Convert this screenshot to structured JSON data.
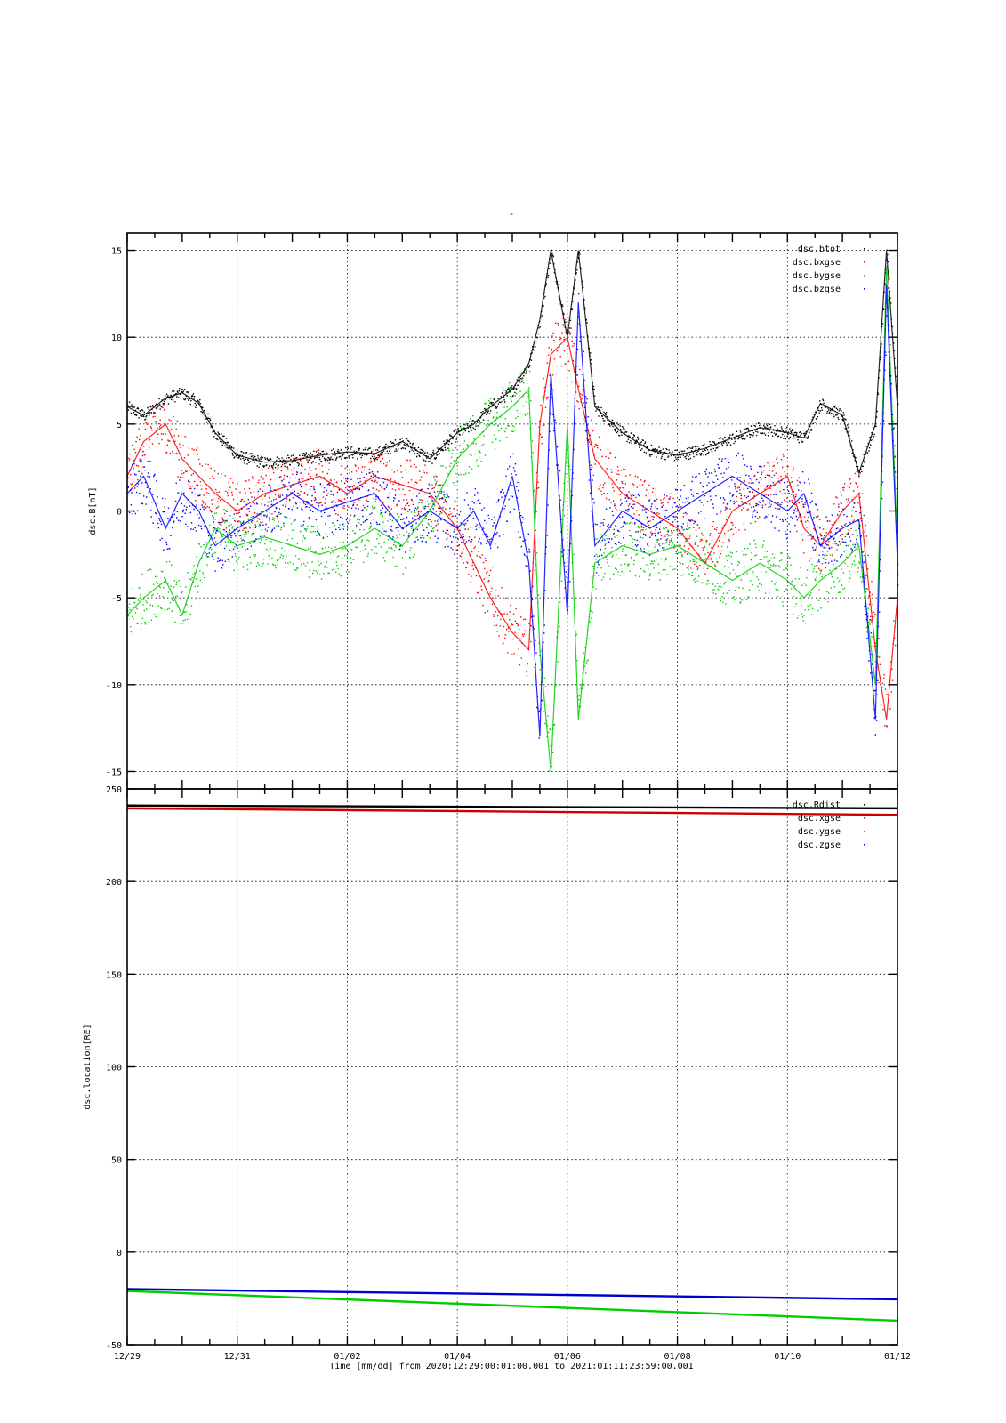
{
  "figure": {
    "title_mark": "-",
    "x_axis_caption": "Time [mm/dd]  from 2020:12:29:00:01:00.001  to  2021:01:11:23:59:00.001"
  },
  "chart_data": [
    {
      "type": "scatter",
      "ylabel": "dsc.B[nT]",
      "ylim": [
        -16,
        16
      ],
      "yticks": [
        -15,
        -10,
        -5,
        0,
        5,
        10,
        15
      ],
      "xlim": [
        "12/29",
        "01/12"
      ],
      "xticks": [
        "12/29",
        "12/31",
        "01/02",
        "01/04",
        "01/06",
        "01/08",
        "01/10",
        "01/12"
      ],
      "grid": true,
      "legend_position": "top-right",
      "series": [
        {
          "name": "dsc.btot",
          "color": "#000000",
          "x": [
            "12/29",
            "12/29.3",
            "12/29.7",
            "12/30",
            "12/30.3",
            "12/30.6",
            "12/31",
            "12/31.5",
            "01/01",
            "01/01.5",
            "01/02",
            "01/02.5",
            "01/03",
            "01/03.5",
            "01/04",
            "01/04.3",
            "01/04.6",
            "01/05",
            "01/05.3",
            "01/05.5",
            "01/05.7",
            "01/06",
            "01/06.2",
            "01/06.5",
            "01/07",
            "01/07.5",
            "01/08",
            "01/08.5",
            "01/09",
            "01/09.5",
            "01/10",
            "01/10.3",
            "01/10.6",
            "01/11",
            "01/11.3",
            "01/11.6",
            "01/11.8",
            "01/12"
          ],
          "y": [
            6,
            5.5,
            6.5,
            6.8,
            6.2,
            4.5,
            3.2,
            2.8,
            2.9,
            3.2,
            3.4,
            3.3,
            4,
            3,
            4.5,
            5,
            6,
            7,
            8.5,
            11,
            15,
            10,
            15,
            6,
            4.5,
            3.5,
            3.2,
            3.6,
            4.2,
            4.8,
            4.5,
            4.2,
            6.2,
            5.5,
            2.2,
            5,
            15,
            6
          ]
        },
        {
          "name": "dsc.bxgse",
          "color": "#ff0000",
          "x": [
            "12/29",
            "12/29.3",
            "12/29.7",
            "12/30",
            "12/30.3",
            "12/30.6",
            "12/31",
            "12/31.5",
            "01/01",
            "01/01.5",
            "01/02",
            "01/02.5",
            "01/03",
            "01/03.5",
            "01/04",
            "01/04.3",
            "01/04.6",
            "01/05",
            "01/05.3",
            "01/05.5",
            "01/05.7",
            "01/06",
            "01/06.2",
            "01/06.5",
            "01/07",
            "01/07.5",
            "01/08",
            "01/08.5",
            "01/09",
            "01/09.5",
            "01/10",
            "01/10.3",
            "01/10.6",
            "01/11",
            "01/11.3",
            "01/11.6",
            "01/11.8",
            "01/12"
          ],
          "y": [
            2,
            4,
            5,
            3,
            2,
            1,
            0,
            1,
            1.5,
            2,
            1,
            2,
            1.5,
            1,
            -1,
            -3,
            -5,
            -7,
            -8,
            5,
            9,
            10,
            7,
            3,
            1,
            0,
            -1,
            -3,
            0,
            1,
            2,
            -1,
            -2,
            0,
            1,
            -8,
            -12,
            -5
          ]
        },
        {
          "name": "dsc.bygse",
          "color": "#00cc00",
          "x": [
            "12/29",
            "12/29.3",
            "12/29.7",
            "12/30",
            "12/30.3",
            "12/30.6",
            "12/31",
            "12/31.5",
            "01/01",
            "01/01.5",
            "01/02",
            "01/02.5",
            "01/03",
            "01/03.5",
            "01/04",
            "01/04.3",
            "01/04.6",
            "01/05",
            "01/05.3",
            "01/05.5",
            "01/05.7",
            "01/06",
            "01/06.2",
            "01/06.5",
            "01/07",
            "01/07.5",
            "01/08",
            "01/08.5",
            "01/09",
            "01/09.5",
            "01/10",
            "01/10.3",
            "01/10.6",
            "01/11",
            "01/11.3",
            "01/11.6",
            "01/11.8",
            "01/12"
          ],
          "y": [
            -6,
            -5,
            -4,
            -6,
            -3,
            -1,
            -2,
            -1.5,
            -2,
            -2.5,
            -2,
            -1,
            -2,
            0,
            3,
            4,
            5,
            6,
            7,
            -8,
            -15,
            5,
            -12,
            -3,
            -2,
            -2.5,
            -2,
            -3,
            -4,
            -3,
            -4,
            -5,
            -4,
            -3,
            -2,
            -10,
            14,
            -2
          ]
        },
        {
          "name": "dsc.bzgse",
          "color": "#0000ff",
          "x": [
            "12/29",
            "12/29.3",
            "12/29.7",
            "12/30",
            "12/30.3",
            "12/30.6",
            "12/31",
            "12/31.5",
            "01/01",
            "01/01.5",
            "01/02",
            "01/02.5",
            "01/03",
            "01/03.5",
            "01/04",
            "01/04.3",
            "01/04.6",
            "01/05",
            "01/05.3",
            "01/05.5",
            "01/05.7",
            "01/06",
            "01/06.2",
            "01/06.5",
            "01/07",
            "01/07.5",
            "01/08",
            "01/08.5",
            "01/09",
            "01/09.5",
            "01/10",
            "01/10.3",
            "01/10.6",
            "01/11",
            "01/11.3",
            "01/11.6",
            "01/11.8",
            "01/12"
          ],
          "y": [
            1,
            2,
            -1,
            1,
            0,
            -2,
            -1,
            0,
            1,
            0,
            0.5,
            1,
            -1,
            0,
            -1,
            0,
            -2,
            2,
            -3,
            -13,
            8,
            -6,
            12,
            -2,
            0,
            -1,
            0,
            1,
            2,
            1,
            0,
            1,
            -2,
            -1,
            -0.5,
            -12,
            13,
            -3
          ]
        }
      ],
      "legend": [
        "dsc.btot",
        "dsc.bxgse",
        "dsc.bygse",
        "dsc.bzgse"
      ]
    },
    {
      "type": "line",
      "ylabel": "dsc.location[RE]",
      "ylim": [
        -50,
        250
      ],
      "yticks": [
        -50,
        0,
        50,
        100,
        150,
        200,
        250
      ],
      "xlim": [
        "12/29",
        "01/12"
      ],
      "xticks": [
        "12/29",
        "12/31",
        "01/02",
        "01/04",
        "01/06",
        "01/08",
        "01/10",
        "01/12"
      ],
      "grid": true,
      "legend_position": "top-right",
      "series": [
        {
          "name": "dsc.Rdist",
          "color": "#000000",
          "x": [
            "12/29",
            "01/12"
          ],
          "y": [
            241,
            239.5
          ]
        },
        {
          "name": "dsc.xgse",
          "color": "#cc0000",
          "x": [
            "12/29",
            "01/12"
          ],
          "y": [
            239.5,
            236
          ]
        },
        {
          "name": "dsc.ygse",
          "color": "#00cc00",
          "x": [
            "12/29",
            "01/12"
          ],
          "y": [
            -21,
            -37
          ]
        },
        {
          "name": "dsc.zgse",
          "color": "#0000cc",
          "x": [
            "12/29",
            "01/12"
          ],
          "y": [
            -20,
            -25.5
          ]
        }
      ],
      "legend": [
        "dsc.Rdist",
        "dsc.xgse",
        "dsc.ygse",
        "dsc.zgse"
      ]
    }
  ]
}
